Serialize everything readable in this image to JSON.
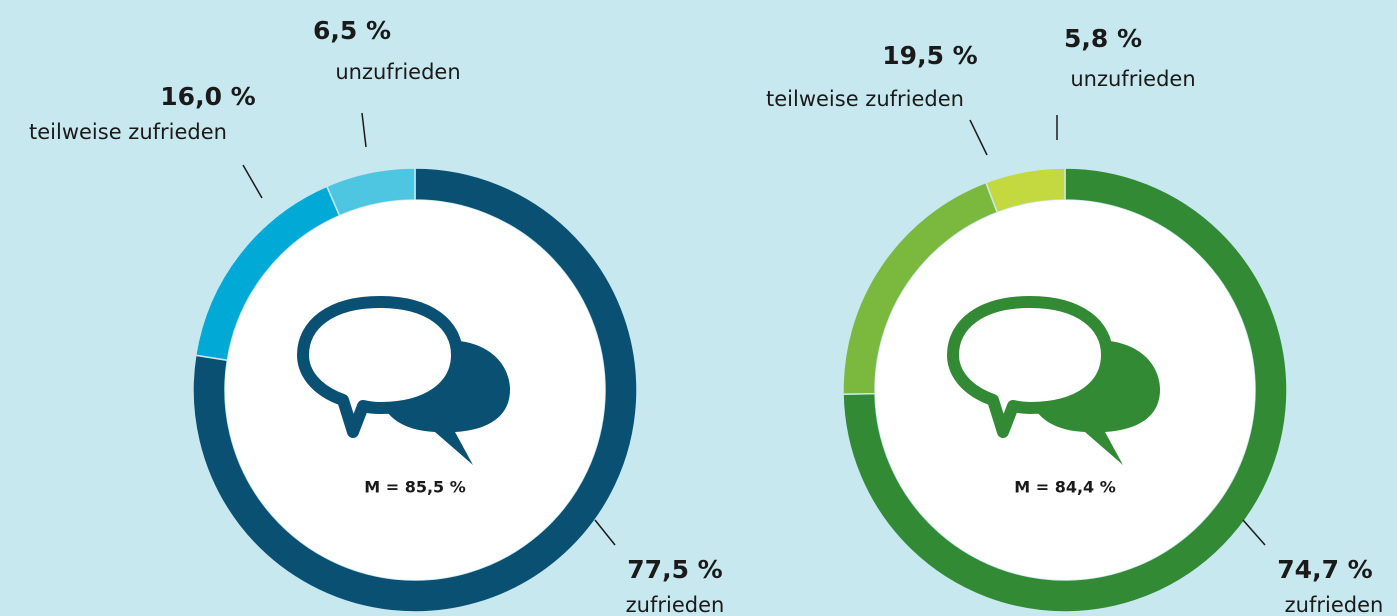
{
  "chart_data": [
    {
      "type": "pie",
      "categories": [
        "zufrieden",
        "teilweise zufrieden",
        "unzufrieden"
      ],
      "values": [
        77.5,
        16.0,
        6.5
      ],
      "value_labels": [
        "77,5 %",
        "16,0 %",
        "6,5 %"
      ],
      "colors": [
        "#0a5073",
        "#00a9d6",
        "#4fc6e1"
      ],
      "annotation": "M = 85,5 %"
    },
    {
      "type": "pie",
      "categories": [
        "zufrieden",
        "teilweise zufrieden",
        "unzufrieden"
      ],
      "values": [
        74.7,
        19.5,
        5.8
      ],
      "value_labels": [
        "74,7 %",
        "19,5 %",
        "5,8 %"
      ],
      "colors": [
        "#338a35",
        "#7ab83e",
        "#c4d83f"
      ],
      "annotation": "M = 84,4 %"
    }
  ]
}
